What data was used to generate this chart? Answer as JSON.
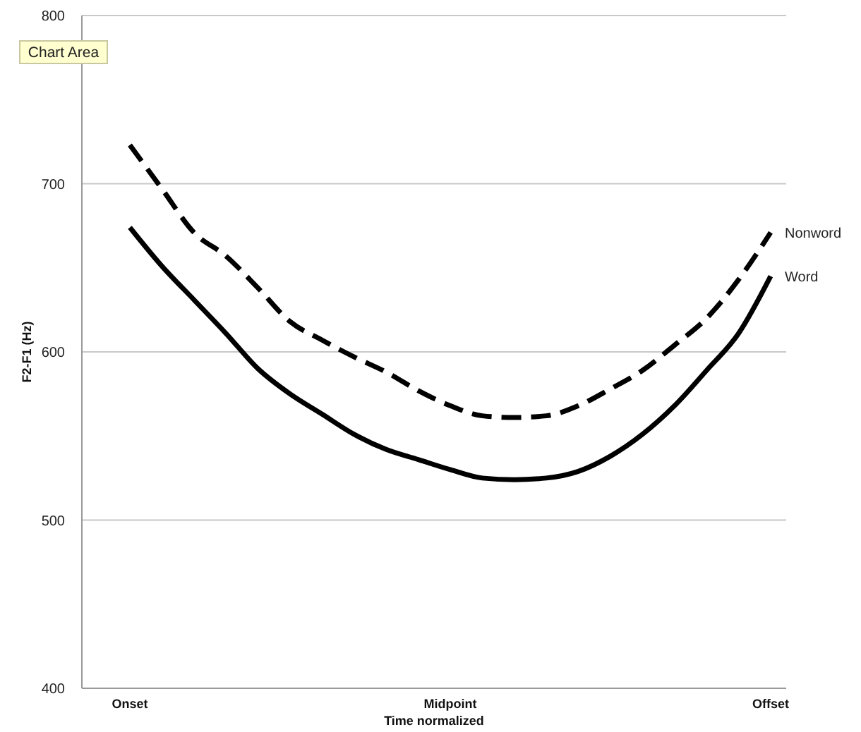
{
  "chart_data": {
    "type": "line",
    "xlabel": "Time normalized",
    "ylabel": "F2-F1 (Hz)",
    "annotations": [
      "Chart Area"
    ],
    "categories": [
      "Onset",
      null,
      null,
      null,
      null,
      null,
      null,
      null,
      null,
      null,
      "Midpoint",
      null,
      null,
      null,
      null,
      null,
      null,
      null,
      null,
      null,
      "Offset"
    ],
    "ylim": [
      400,
      800
    ],
    "yticks": [
      400,
      500,
      600,
      700,
      800
    ],
    "grid": "y",
    "marker": "none",
    "series": [
      {
        "name": "Nonword",
        "color": "#000000",
        "line_style": "dashed",
        "values": [
          723,
          697,
          671,
          657,
          638,
          618,
          607,
          597,
          588,
          577,
          568,
          562,
          561,
          562,
          568,
          578,
          589,
          604,
          620,
          643,
          671
        ]
      },
      {
        "name": "Word",
        "color": "#000000",
        "line_style": "solid",
        "values": [
          674,
          651,
          631,
          611,
          590,
          575,
          563,
          551,
          542,
          536,
          530,
          525,
          524,
          525,
          529,
          538,
          551,
          568,
          589,
          611,
          645
        ]
      }
    ]
  }
}
